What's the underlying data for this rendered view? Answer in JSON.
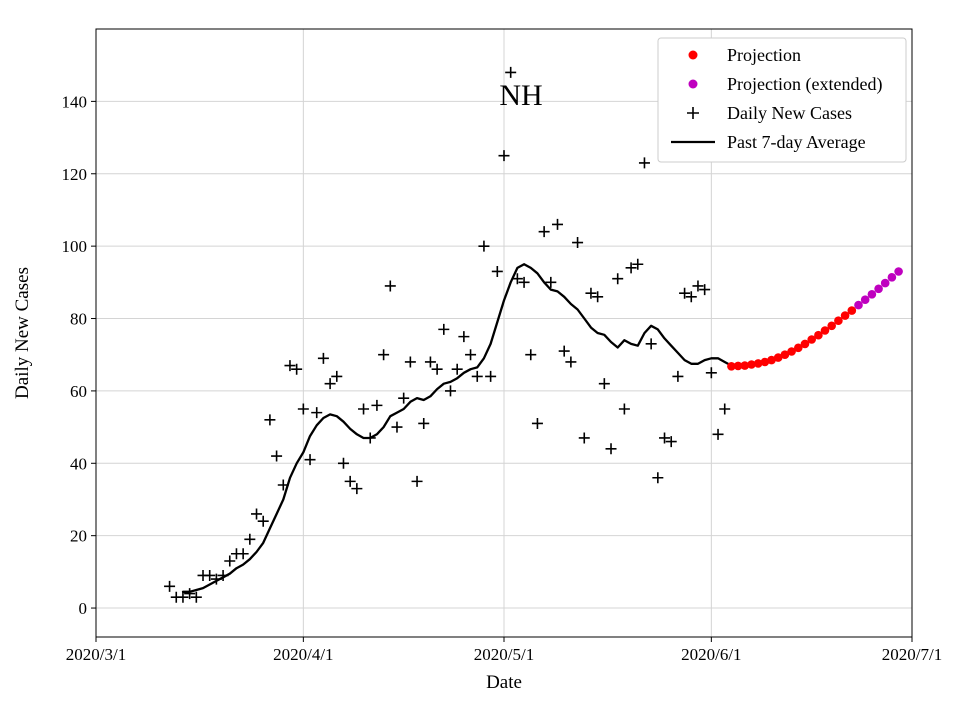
{
  "chart_data": {
    "type": "scatter",
    "title": "NH",
    "xlabel": "Date",
    "ylabel": "Daily New Cases",
    "x_tick_labels": [
      "2020/3/1",
      "2020/4/1",
      "2020/5/1",
      "2020/6/1",
      "2020/7/1"
    ],
    "x_tick_days": [
      0,
      31,
      61,
      92,
      122
    ],
    "y_ticks": [
      0,
      20,
      40,
      60,
      80,
      100,
      120,
      140
    ],
    "xlim_days": [
      0,
      122
    ],
    "ylim": [
      -8,
      160
    ],
    "grid": true,
    "colors": {
      "projection": "#ff0000",
      "projection_extended": "#bf00bf",
      "daily_cases": "#000000",
      "average_line": "#000000",
      "grid": "#d4d4d4",
      "spine": "#000000",
      "legend_border": "#cccccc"
    },
    "legend": {
      "position": "upper right",
      "items": [
        {
          "label": "Projection",
          "marker": "dot",
          "color": "#ff0000"
        },
        {
          "label": "Projection (extended)",
          "marker": "dot",
          "color": "#bf00bf"
        },
        {
          "label": "Daily New Cases",
          "marker": "plus",
          "color": "#000000"
        },
        {
          "label": "Past 7-day Average",
          "marker": "line",
          "color": "#000000"
        }
      ]
    },
    "series": [
      {
        "name": "Daily New Cases",
        "type": "plus-scatter",
        "color": "#000000",
        "points": [
          [
            11,
            6
          ],
          [
            12,
            3
          ],
          [
            13,
            3
          ],
          [
            14,
            4
          ],
          [
            15,
            3
          ],
          [
            16,
            9
          ],
          [
            17,
            9
          ],
          [
            18,
            8
          ],
          [
            19,
            9
          ],
          [
            20,
            13
          ],
          [
            21,
            15
          ],
          [
            22,
            15
          ],
          [
            23,
            19
          ],
          [
            24,
            26
          ],
          [
            25,
            24
          ],
          [
            26,
            52
          ],
          [
            27,
            42
          ],
          [
            28,
            34
          ],
          [
            29,
            67
          ],
          [
            30,
            66
          ],
          [
            31,
            55
          ],
          [
            32,
            41
          ],
          [
            33,
            54
          ],
          [
            34,
            69
          ],
          [
            35,
            62
          ],
          [
            36,
            64
          ],
          [
            37,
            40
          ],
          [
            38,
            35
          ],
          [
            39,
            33
          ],
          [
            40,
            55
          ],
          [
            41,
            47
          ],
          [
            42,
            56
          ],
          [
            43,
            70
          ],
          [
            44,
            89
          ],
          [
            45,
            50
          ],
          [
            46,
            58
          ],
          [
            47,
            68
          ],
          [
            48,
            35
          ],
          [
            49,
            51
          ],
          [
            50,
            68
          ],
          [
            51,
            66
          ],
          [
            52,
            77
          ],
          [
            53,
            60
          ],
          [
            54,
            66
          ],
          [
            55,
            75
          ],
          [
            56,
            70
          ],
          [
            57,
            64
          ],
          [
            58,
            100
          ],
          [
            59,
            64
          ],
          [
            60,
            93
          ],
          [
            61,
            125
          ],
          [
            62,
            148
          ],
          [
            63,
            91
          ],
          [
            64,
            90
          ],
          [
            65,
            70
          ],
          [
            66,
            51
          ],
          [
            67,
            104
          ],
          [
            68,
            90
          ],
          [
            69,
            106
          ],
          [
            70,
            71
          ],
          [
            71,
            68
          ],
          [
            72,
            101
          ],
          [
            73,
            47
          ],
          [
            74,
            87
          ],
          [
            75,
            86
          ],
          [
            76,
            62
          ],
          [
            77,
            44
          ],
          [
            78,
            91
          ],
          [
            79,
            55
          ],
          [
            80,
            94
          ],
          [
            81,
            95
          ],
          [
            82,
            123
          ],
          [
            83,
            73
          ],
          [
            84,
            36
          ],
          [
            85,
            47
          ],
          [
            86,
            46
          ],
          [
            87,
            64
          ],
          [
            88,
            87
          ],
          [
            89,
            86
          ],
          [
            90,
            89
          ],
          [
            91,
            88
          ],
          [
            92,
            65
          ],
          [
            93,
            48
          ],
          [
            94,
            55
          ]
        ]
      },
      {
        "name": "Past 7-day Average",
        "type": "line",
        "color": "#000000",
        "width": 2.3,
        "points": [
          [
            13,
            4.5
          ],
          [
            14,
            4.5
          ],
          [
            15,
            5
          ],
          [
            16,
            5.5
          ],
          [
            17,
            6.5
          ],
          [
            18,
            7.5
          ],
          [
            19,
            8.5
          ],
          [
            20,
            9.5
          ],
          [
            21,
            11
          ],
          [
            22,
            12
          ],
          [
            23,
            13.5
          ],
          [
            24,
            15.5
          ],
          [
            25,
            18
          ],
          [
            26,
            22
          ],
          [
            27,
            26
          ],
          [
            28,
            30
          ],
          [
            29,
            36
          ],
          [
            30,
            40
          ],
          [
            31,
            43
          ],
          [
            32,
            47.5
          ],
          [
            33,
            50.5
          ],
          [
            34,
            52.5
          ],
          [
            35,
            53.5
          ],
          [
            36,
            53
          ],
          [
            37,
            51.5
          ],
          [
            38,
            49.5
          ],
          [
            39,
            48
          ],
          [
            40,
            47
          ],
          [
            41,
            47
          ],
          [
            42,
            48
          ],
          [
            43,
            50
          ],
          [
            44,
            53
          ],
          [
            45,
            54
          ],
          [
            46,
            55
          ],
          [
            47,
            57
          ],
          [
            48,
            58
          ],
          [
            49,
            57.5
          ],
          [
            50,
            58.5
          ],
          [
            51,
            60.5
          ],
          [
            52,
            62
          ],
          [
            53,
            62.5
          ],
          [
            54,
            63.5
          ],
          [
            55,
            65
          ],
          [
            56,
            66
          ],
          [
            57,
            66.5
          ],
          [
            58,
            69
          ],
          [
            59,
            73
          ],
          [
            60,
            79
          ],
          [
            61,
            85
          ],
          [
            62,
            90
          ],
          [
            63,
            94
          ],
          [
            64,
            95
          ],
          [
            65,
            94
          ],
          [
            66,
            92.5
          ],
          [
            67,
            90
          ],
          [
            68,
            88
          ],
          [
            69,
            87.5
          ],
          [
            70,
            86
          ],
          [
            71,
            84
          ],
          [
            72,
            82.5
          ],
          [
            73,
            80
          ],
          [
            74,
            77.5
          ],
          [
            75,
            76
          ],
          [
            76,
            75.5
          ],
          [
            77,
            73.5
          ],
          [
            78,
            72
          ],
          [
            79,
            74
          ],
          [
            80,
            73
          ],
          [
            81,
            72.5
          ],
          [
            82,
            76
          ],
          [
            83,
            78
          ],
          [
            84,
            77
          ],
          [
            85,
            74.5
          ],
          [
            86,
            72.5
          ],
          [
            87,
            70.5
          ],
          [
            88,
            68.5
          ],
          [
            89,
            67.5
          ],
          [
            90,
            67.5
          ],
          [
            91,
            68.5
          ],
          [
            92,
            69
          ],
          [
            93,
            69
          ],
          [
            94,
            68
          ],
          [
            95,
            67
          ]
        ]
      },
      {
        "name": "Projection",
        "type": "dot",
        "color": "#ff0000",
        "points": [
          [
            95,
            66.8
          ],
          [
            96,
            66.9
          ],
          [
            97,
            67.0
          ],
          [
            98,
            67.3
          ],
          [
            99,
            67.6
          ],
          [
            100,
            68.0
          ],
          [
            101,
            68.5
          ],
          [
            102,
            69.2
          ],
          [
            103,
            70.0
          ],
          [
            104,
            70.9
          ],
          [
            105,
            71.9
          ],
          [
            106,
            73.0
          ],
          [
            107,
            74.2
          ],
          [
            108,
            75.4
          ],
          [
            109,
            76.7
          ],
          [
            110,
            78.0
          ],
          [
            111,
            79.4
          ],
          [
            112,
            80.8
          ],
          [
            113,
            82.2
          ]
        ]
      },
      {
        "name": "Projection (extended)",
        "type": "dot",
        "color": "#bf00bf",
        "points": [
          [
            114,
            83.7
          ],
          [
            115,
            85.2
          ],
          [
            116,
            86.7
          ],
          [
            117,
            88.2
          ],
          [
            118,
            89.8
          ],
          [
            119,
            91.4
          ],
          [
            120,
            93.0
          ]
        ]
      }
    ]
  }
}
